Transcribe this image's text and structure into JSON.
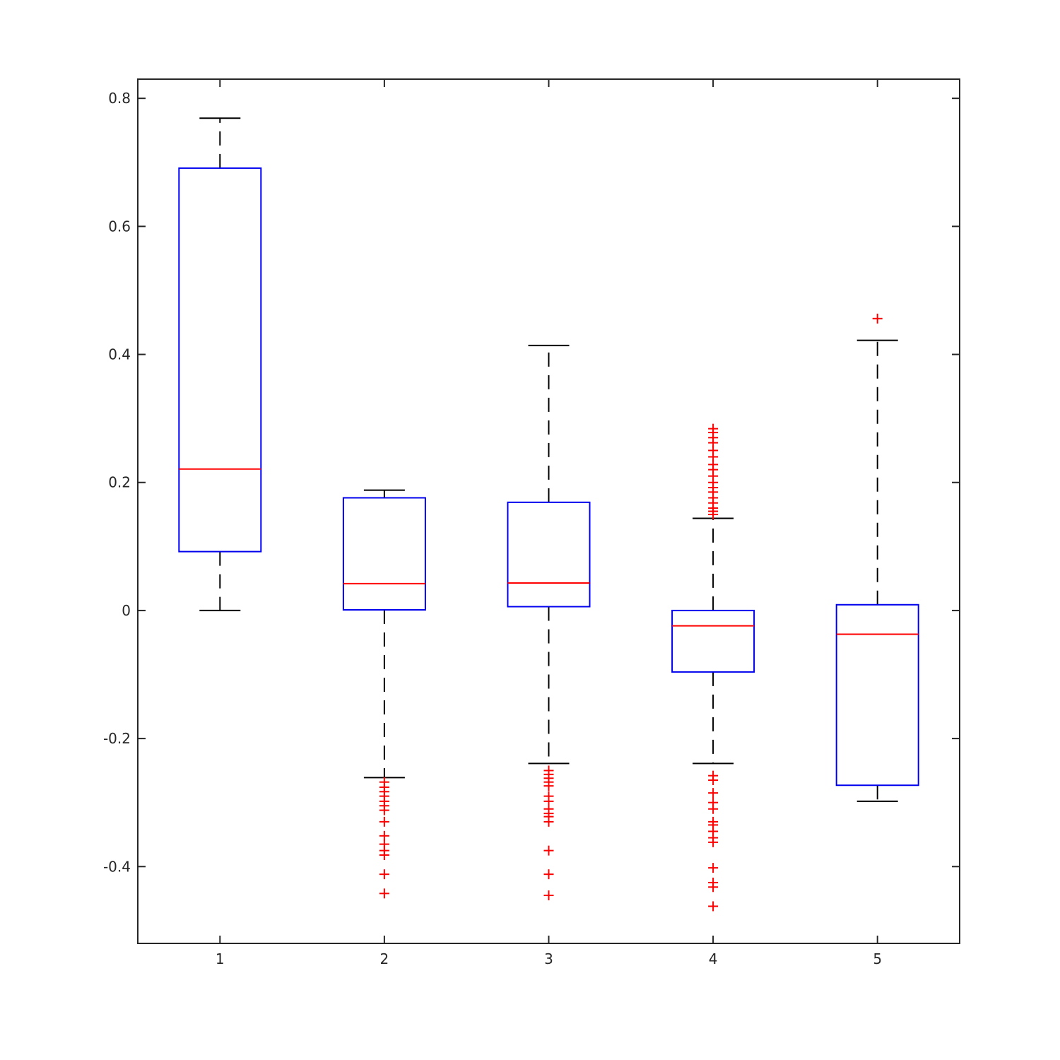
{
  "chart_data": {
    "type": "box",
    "categories": [
      "1",
      "2",
      "3",
      "4",
      "5"
    ],
    "ylim": [
      -0.52,
      0.83
    ],
    "yticks": [
      -0.4,
      -0.2,
      0,
      0.2,
      0.4,
      0.6,
      0.8
    ],
    "ytick_labels": [
      "-0.4",
      "-0.2",
      "0",
      "0.2",
      "0.4",
      "0.6",
      "0.8"
    ],
    "grid": false,
    "colors": {
      "box": "#0000ee",
      "median": "#ff0000",
      "whisker": "#000000",
      "outlier": "#ff0000",
      "axis": "#262626"
    },
    "boxes": [
      {
        "category": "1",
        "whisker_low": 0.0,
        "q1": 0.092,
        "median": 0.221,
        "q3": 0.691,
        "whisker_high": 0.769,
        "outliers": []
      },
      {
        "category": "2",
        "whisker_low": -0.261,
        "q1": 0.001,
        "median": 0.042,
        "q3": 0.176,
        "whisker_high": 0.188,
        "outliers": [
          -0.268,
          -0.276,
          -0.283,
          -0.29,
          -0.298,
          -0.305,
          -0.312,
          -0.33,
          -0.352,
          -0.365,
          -0.375,
          -0.382,
          -0.412,
          -0.442
        ]
      },
      {
        "category": "3",
        "whisker_low": -0.239,
        "q1": 0.006,
        "median": 0.043,
        "q3": 0.169,
        "whisker_high": 0.414,
        "outliers": [
          -0.25,
          -0.256,
          -0.262,
          -0.268,
          -0.274,
          -0.29,
          -0.298,
          -0.31,
          -0.317,
          -0.322,
          -0.33,
          -0.375,
          -0.412,
          -0.445
        ]
      },
      {
        "category": "4",
        "whisker_low": -0.239,
        "q1": -0.096,
        "median": -0.024,
        "q3": 0.0,
        "whisker_high": 0.144,
        "outliers": [
          0.284,
          0.278,
          0.27,
          0.262,
          0.25,
          0.24,
          0.228,
          0.22,
          0.21,
          0.2,
          0.192,
          0.185,
          0.176,
          0.168,
          0.16,
          0.155,
          0.15,
          -0.258,
          -0.265,
          -0.285,
          -0.3,
          -0.31,
          -0.33,
          -0.335,
          -0.345,
          -0.355,
          -0.362,
          -0.402,
          -0.425,
          -0.432,
          -0.462
        ]
      },
      {
        "category": "5",
        "whisker_low": -0.298,
        "q1": -0.273,
        "median": -0.037,
        "q3": 0.009,
        "whisker_high": 0.422,
        "outliers": [
          0.456
        ]
      }
    ]
  }
}
